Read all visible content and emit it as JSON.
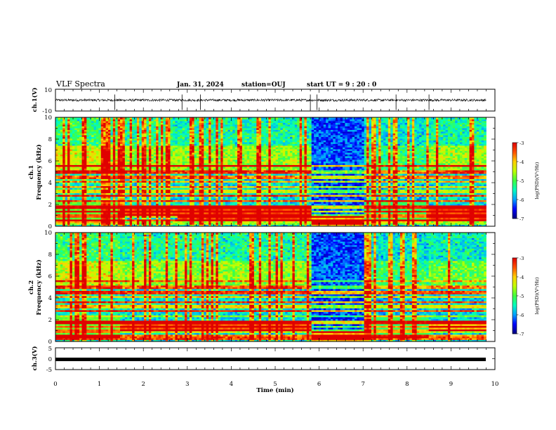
{
  "header": {
    "title": "VLF Spectra",
    "date": "Jan. 31, 2024",
    "station": "station=OUJ",
    "start_label": "start  UT  =",
    "start_time": "9 : 20 : 0"
  },
  "chart_data": [
    {
      "type": "line",
      "panel": "ch1-waveform",
      "ylabel": "ch.1(V)",
      "ylim": [
        -10,
        10
      ],
      "yticks": [
        "10",
        "-10"
      ],
      "series": [
        {
          "x": [
            0,
            9.8
          ],
          "y": [
            0,
            0
          ],
          "amplitude_approx": 1
        }
      ],
      "spikes_min": [
        1.35,
        2.88,
        3.3,
        5.8,
        5.95,
        7.75,
        8.5
      ]
    },
    {
      "type": "heatmap",
      "panel": "ch1-spectrogram",
      "ylabel_line1": "ch.1",
      "ylabel_line2": "Frequency (kHz)",
      "ylim": [
        0,
        10
      ],
      "yticks": [
        "0",
        "2",
        "4",
        "6",
        "8",
        "10"
      ],
      "xlim": [
        0,
        9.8
      ],
      "time_segments_min": [
        {
          "start": 0.0,
          "end": 1.45,
          "regime": "low-freq bands, hiss"
        },
        {
          "start": 1.45,
          "end": 2.75,
          "regime": "strong band 1-2 kHz"
        },
        {
          "start": 2.75,
          "end": 5.8,
          "regime": "strong band 0.5-2 kHz"
        },
        {
          "start": 5.8,
          "end": 7.0,
          "regime": "quiet / dark"
        },
        {
          "start": 7.0,
          "end": 8.5,
          "regime": "weak"
        },
        {
          "start": 8.5,
          "end": 9.8,
          "regime": "strong band 0.5-2 kHz"
        }
      ],
      "colorbar": {
        "label": "log(PSD)(V²/Hz)",
        "range": [
          -7,
          -3
        ],
        "ticks": [
          "-3",
          "-4",
          "-5",
          "-6",
          "-7"
        ],
        "colors": [
          "#00007f",
          "#0000ff",
          "#00a0ff",
          "#00ffc0",
          "#40ff40",
          "#c0ff00",
          "#ffd000",
          "#ff5000",
          "#e00000",
          "#ffffff"
        ]
      }
    },
    {
      "type": "heatmap",
      "panel": "ch2-spectrogram",
      "ylabel_line1": "ch.2",
      "ylabel_line2": "Frequency (kHz)",
      "ylim": [
        0,
        10
      ],
      "yticks": [
        "0",
        "2",
        "4",
        "6",
        "8",
        "10"
      ],
      "xlim": [
        0,
        9.8
      ],
      "time_segments_min": [
        {
          "start": 0.0,
          "end": 1.45,
          "regime": "low-freq bands"
        },
        {
          "start": 1.45,
          "end": 5.8,
          "regime": "strong band 1-2 kHz"
        },
        {
          "start": 5.8,
          "end": 7.0,
          "regime": "quiet / dark"
        },
        {
          "start": 7.0,
          "end": 8.5,
          "regime": "weak"
        },
        {
          "start": 8.5,
          "end": 9.8,
          "regime": "band 1-2 kHz"
        }
      ],
      "colorbar": {
        "label": "log(PSD)(V²/Hz)",
        "range": [
          -7,
          -3
        ],
        "ticks": [
          "-3",
          "-4",
          "-5",
          "-6",
          "-7"
        ],
        "colors": [
          "#00007f",
          "#0000ff",
          "#00a0ff",
          "#00ffc0",
          "#40ff40",
          "#c0ff00",
          "#ffd000",
          "#ff5000",
          "#e00000",
          "#ffffff"
        ]
      }
    },
    {
      "type": "line",
      "panel": "ch3-waveform",
      "ylabel": "ch.3(V)",
      "ylim": [
        -5,
        5
      ],
      "yticks": [
        "5",
        "0",
        "-5"
      ],
      "series": [
        {
          "x": [
            0,
            9.8
          ],
          "y": [
            0,
            0
          ]
        }
      ]
    }
  ],
  "xaxis": {
    "label": "Time (min)",
    "range": [
      0,
      10
    ],
    "ticks": [
      "0",
      "1",
      "2",
      "3",
      "4",
      "5",
      "6",
      "7",
      "8",
      "9",
      "10"
    ]
  }
}
